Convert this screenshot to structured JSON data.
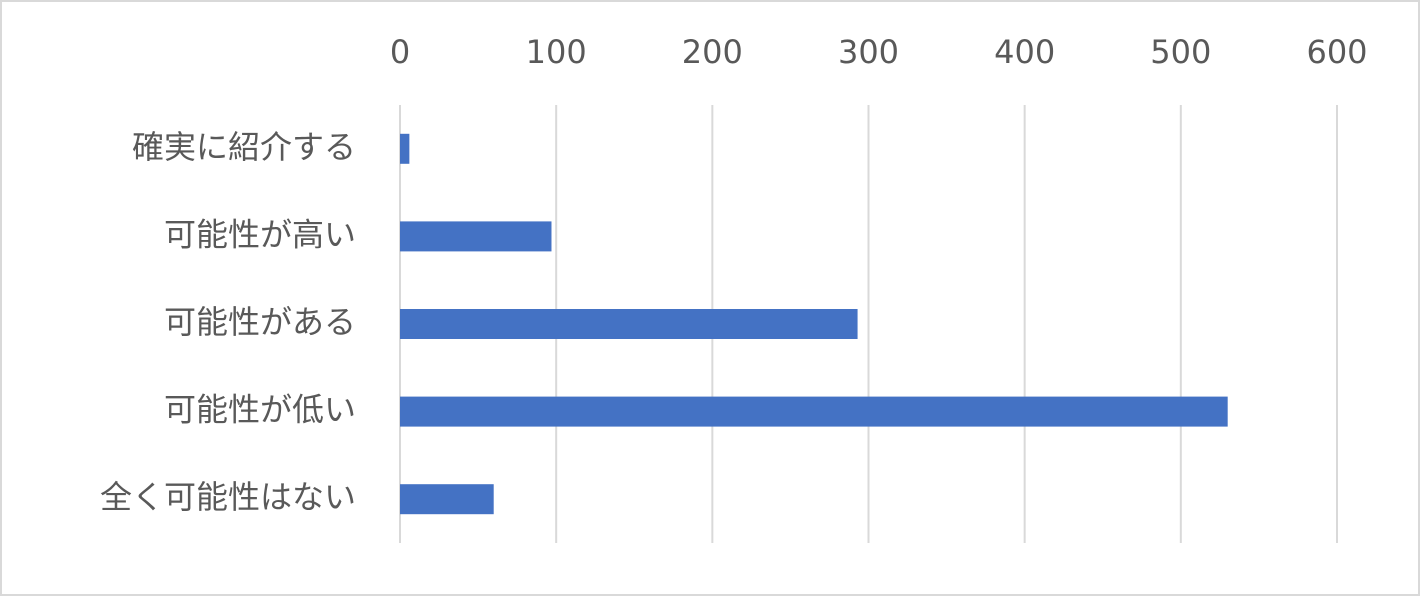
{
  "chart_data": {
    "type": "hbar",
    "categories": [
      "確実に紹介する",
      "可能性が高い",
      "可能性がある",
      "可能性が低い",
      "全く可能性はない"
    ],
    "values": [
      6,
      97,
      293,
      530,
      60
    ],
    "color": "#4472c4",
    "xlim": [
      0,
      600
    ],
    "xticks": [
      0,
      100,
      200,
      300,
      400,
      500,
      600
    ],
    "grid": true,
    "axis_position": "top"
  }
}
